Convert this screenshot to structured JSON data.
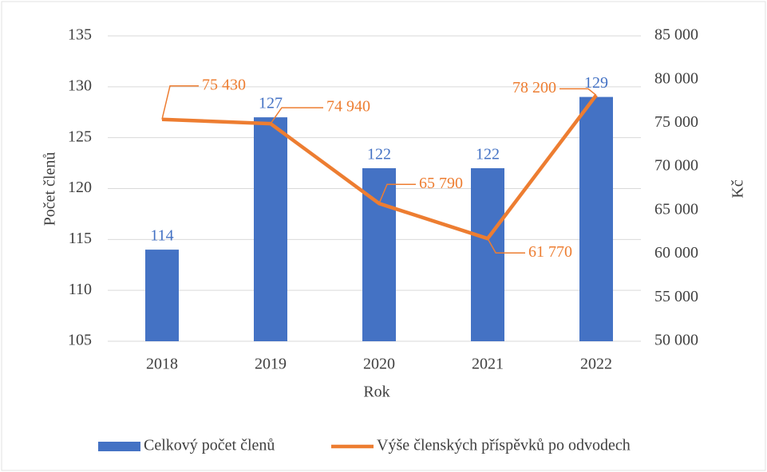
{
  "chart_data": {
    "type": "bar",
    "x_label": "Rok",
    "y_label": "Počet členů",
    "y2_label": "Kč",
    "categories": [
      "2018",
      "2019",
      "2020",
      "2021",
      "2022"
    ],
    "series": [
      {
        "name": "Celkový počet členů",
        "type": "bar",
        "color": "#4472c4",
        "values": [
          114,
          127,
          122,
          122,
          129
        ]
      },
      {
        "name": "Výše členských příspěvků po odvodech",
        "type": "line",
        "axis": "y2",
        "color": "#ed7d31",
        "values": [
          75430,
          74940,
          65790,
          61770,
          78200
        ],
        "value_labels": [
          "75 430",
          "74 940",
          "65 790",
          "61 770",
          "78 200"
        ]
      }
    ],
    "ylim": [
      105,
      135
    ],
    "yticks": [
      105,
      110,
      115,
      120,
      125,
      130,
      135
    ],
    "y2lim": [
      50000,
      85000
    ],
    "y2ticks": [
      {
        "value": 50000,
        "label": "50 000"
      },
      {
        "value": 55000,
        "label": "55 000"
      },
      {
        "value": 60000,
        "label": "60 000"
      },
      {
        "value": 65000,
        "label": "65 000"
      },
      {
        "value": 70000,
        "label": "70 000"
      },
      {
        "value": 75000,
        "label": "75 000"
      },
      {
        "value": 80000,
        "label": "80 000"
      },
      {
        "value": 85000,
        "label": "85 000"
      }
    ],
    "grid": true,
    "legend": "bottom"
  }
}
